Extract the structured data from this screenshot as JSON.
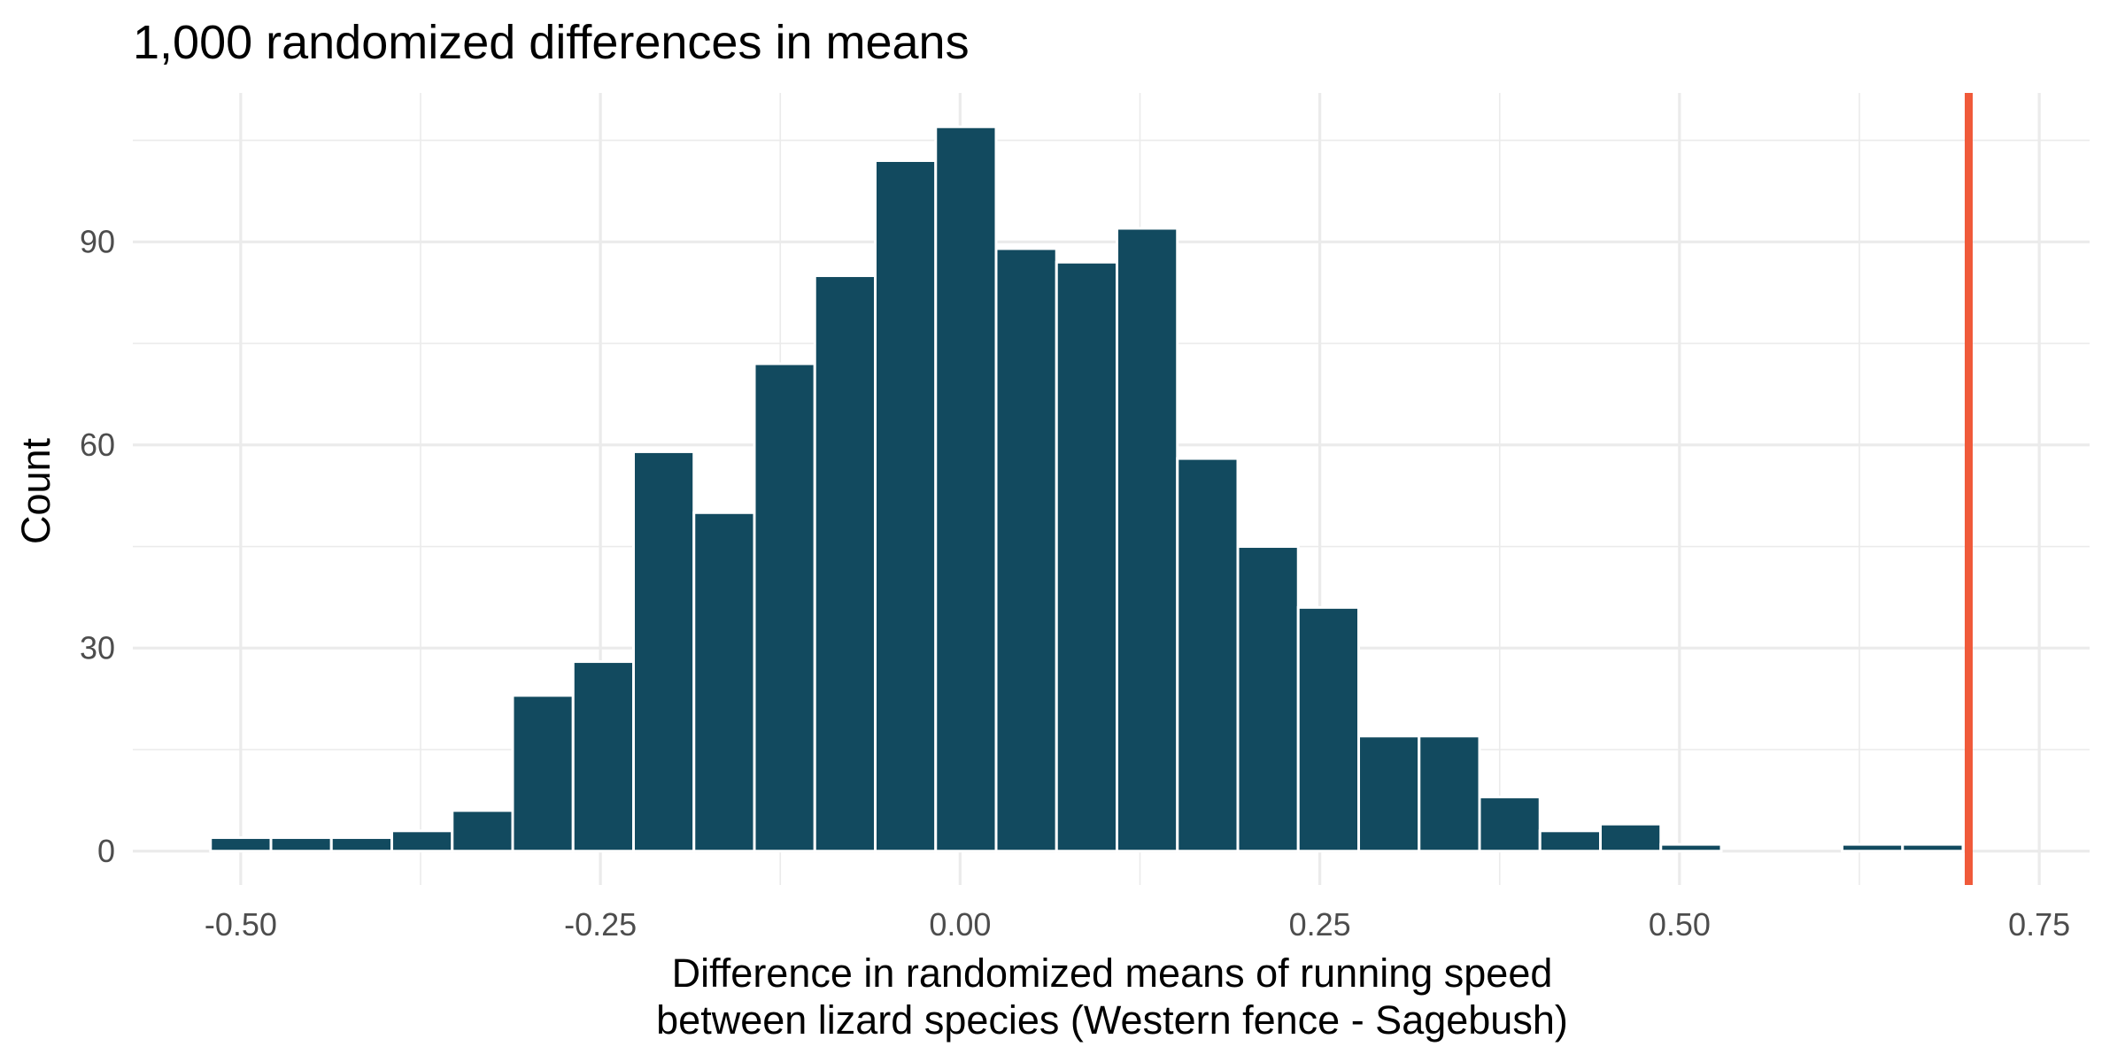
{
  "chart_data": {
    "type": "histogram",
    "title": "1,000 randomized differences in means",
    "xlabel_lines": [
      "Difference in randomized means of running speed",
      "between lizard species (Western fence - Sagebush)"
    ],
    "ylabel": "Count",
    "xlim": [
      -0.575,
      0.785
    ],
    "ylim": [
      -5,
      112
    ],
    "x_ticks": [
      -0.5,
      -0.25,
      0.0,
      0.25,
      0.5,
      0.75
    ],
    "x_tick_labels": [
      "-0.50",
      "-0.25",
      "0.00",
      "0.25",
      "0.50",
      "0.75"
    ],
    "x_minor_ticks": [
      -0.375,
      -0.125,
      0.125,
      0.375,
      0.625
    ],
    "y_ticks": [
      0,
      30,
      60,
      90
    ],
    "y_tick_labels": [
      "0",
      "30",
      "60",
      "90"
    ],
    "y_minor_ticks": [
      15,
      45,
      75,
      105
    ],
    "grid": true,
    "bin_width": 0.042,
    "bin_centers": [
      -0.5,
      -0.458,
      -0.416,
      -0.374,
      -0.332,
      -0.29,
      -0.248,
      -0.206,
      -0.164,
      -0.122,
      -0.08,
      -0.038,
      0.004,
      0.046,
      0.088,
      0.13,
      0.172,
      0.214,
      0.256,
      0.298,
      0.34,
      0.382,
      0.424,
      0.466,
      0.508,
      0.55,
      0.592,
      0.634,
      0.676
    ],
    "counts": [
      2,
      2,
      2,
      3,
      6,
      23,
      28,
      59,
      50,
      72,
      85,
      102,
      107,
      89,
      87,
      92,
      58,
      45,
      36,
      17,
      17,
      8,
      3,
      4,
      1,
      0,
      0,
      1,
      1
    ],
    "bar_color": "#124a5f",
    "reference_line": {
      "x": 0.701,
      "color": "#f05a3a"
    }
  }
}
